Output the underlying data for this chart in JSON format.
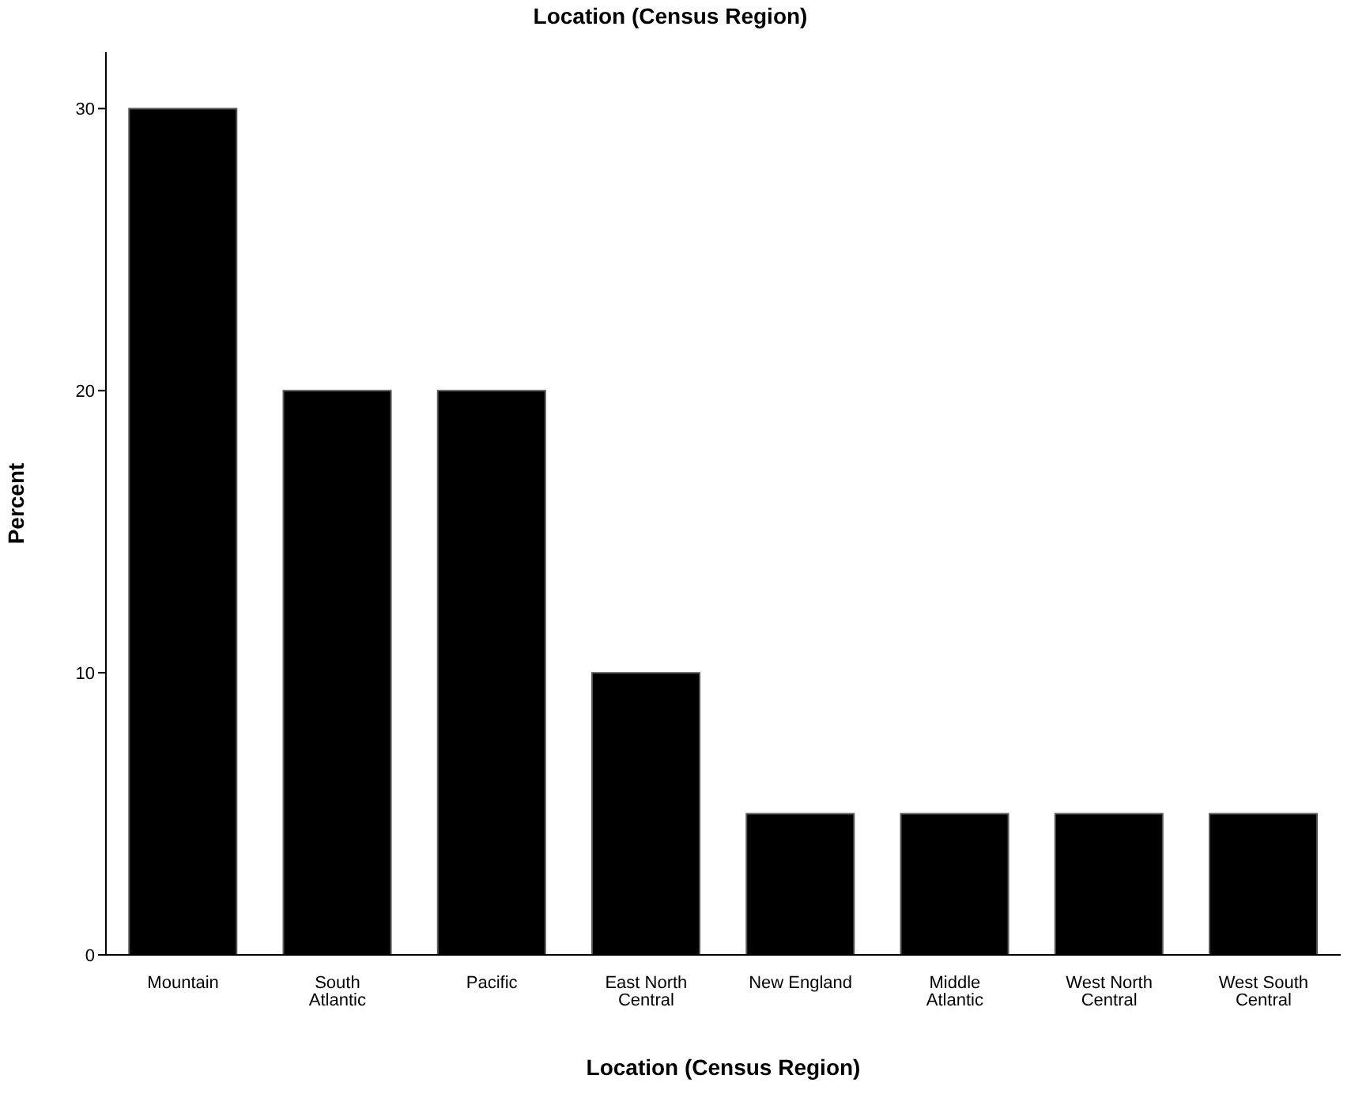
{
  "chart_data": {
    "type": "bar",
    "title": "Location (Census Region)",
    "xlabel": "Location (Census Region)",
    "ylabel": "Percent",
    "categories": [
      "Mountain",
      "South Atlantic",
      "Pacific",
      "East North Central",
      "New England",
      "Middle Atlantic",
      "West North Central",
      "West South Central"
    ],
    "values": [
      30,
      20,
      20,
      10,
      5,
      5,
      5,
      5
    ],
    "color": "#000000",
    "ylim": [
      0,
      32
    ],
    "yticks": [
      0,
      10,
      20,
      30
    ],
    "grid": false
  }
}
